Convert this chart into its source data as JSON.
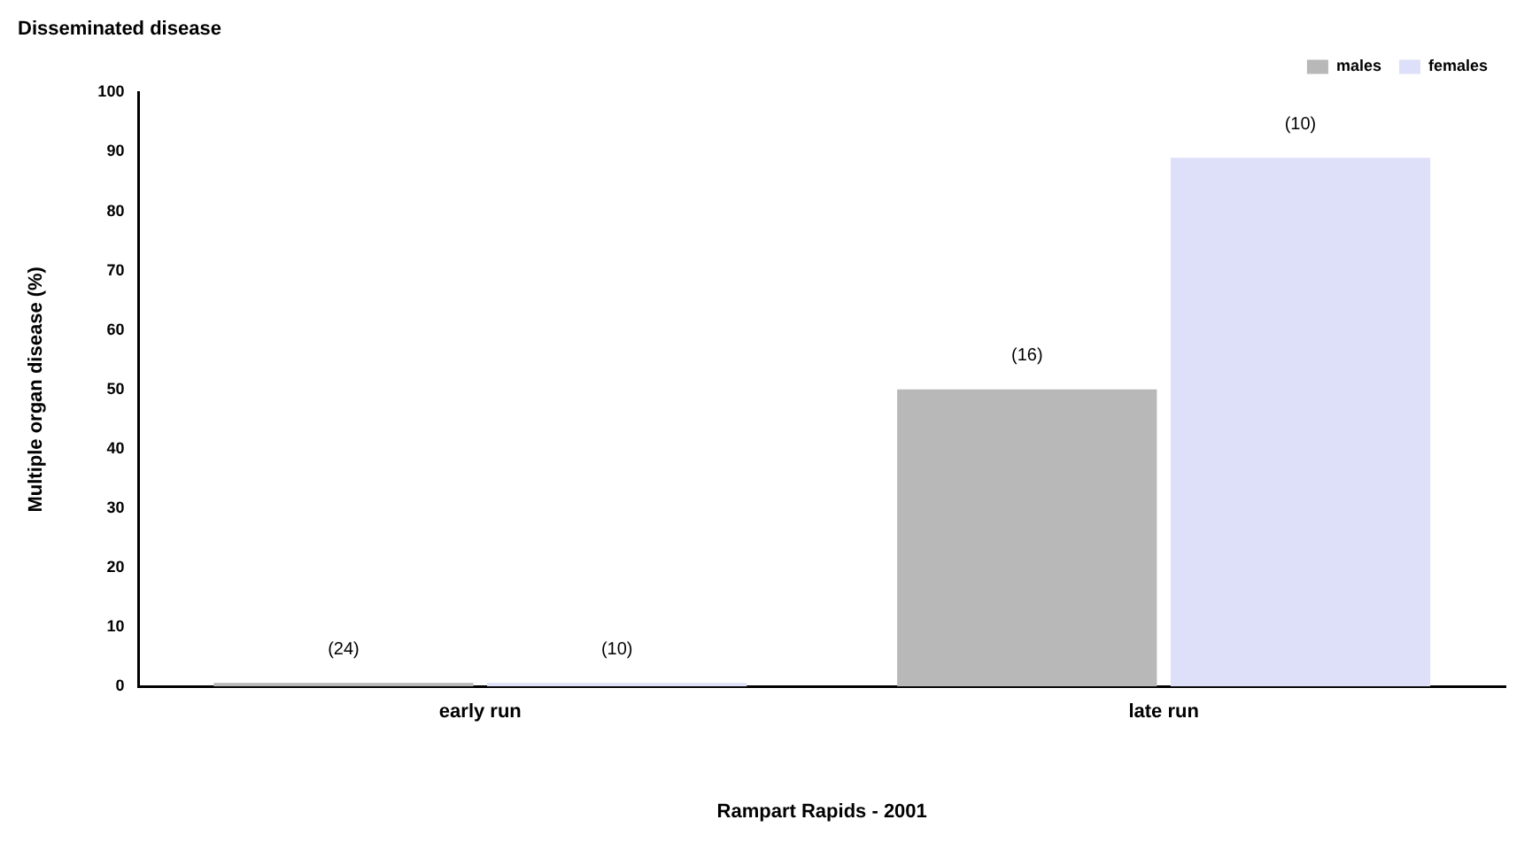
{
  "chart_data": {
    "type": "bar",
    "title": "Disseminated disease",
    "xlabel": "Rampart Rapids - 2001",
    "ylabel": "Multiple organ disease (%)",
    "categories": [
      "early run",
      "late run"
    ],
    "series": [
      {
        "name": "males",
        "color": "#b8b8b8",
        "values": [
          0,
          50
        ]
      },
      {
        "name": "females",
        "color": "#dde0f8",
        "values": [
          0,
          89
        ]
      }
    ],
    "annotations": [
      "(24)",
      "(16)",
      "(10)",
      "(10)"
    ],
    "ylim": [
      0,
      100
    ],
    "yticks": [
      0,
      10,
      20,
      30,
      40,
      50,
      60,
      70,
      80,
      90,
      100
    ],
    "grid": false,
    "legend": "top right"
  }
}
